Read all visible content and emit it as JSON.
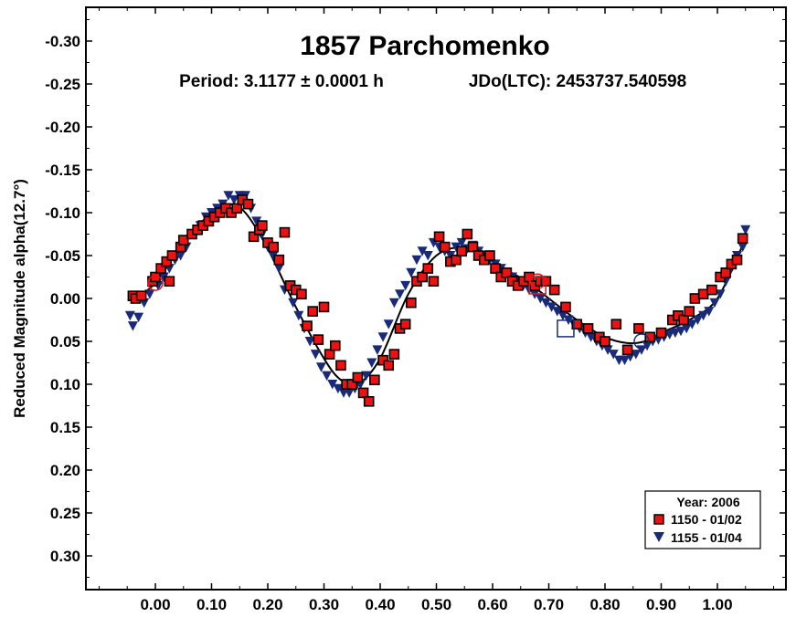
{
  "chart_data": {
    "type": "scatter",
    "title": "1857 Parchomenko",
    "subtitle_period": "Period: 3.1177 ± 0.0001 h",
    "subtitle_epoch": "JDo(LTC): 2453737.540598",
    "xlabel": "",
    "ylabel": "Reduced Magnitude alpha(12.7°)",
    "xlim": [
      -0.12,
      1.13
    ],
    "ylim": [
      0.35,
      -0.33
    ],
    "y_inverted": true,
    "grid": false,
    "x_ticks": [
      0.0,
      0.1,
      0.2,
      0.3,
      0.4,
      0.5,
      0.6,
      0.7,
      0.8,
      0.9,
      1.0
    ],
    "x_tick_labels": [
      "0.00",
      "0.10",
      "0.20",
      "0.30",
      "0.40",
      "0.50",
      "0.60",
      "0.70",
      "0.80",
      "0.90",
      "1.00"
    ],
    "y_ticks": [
      -0.3,
      -0.25,
      -0.2,
      -0.15,
      -0.1,
      -0.05,
      0.0,
      0.05,
      0.1,
      0.15,
      0.2,
      0.25,
      0.3
    ],
    "y_tick_labels": [
      "-0.30",
      "-0.25",
      "-0.20",
      "-0.15",
      "-0.10",
      "-0.05",
      "0.00",
      "0.05",
      "0.10",
      "0.15",
      "0.20",
      "0.25",
      "0.30"
    ],
    "legend": {
      "placement": "bottom-right",
      "title": "Year: 2006",
      "entries": [
        "1150 - 01/02",
        "1155 - 01/04"
      ]
    },
    "colors": {
      "series1": "#ee1111",
      "series2": "#1a2a7a",
      "curve": "#000000"
    },
    "series": [
      {
        "name": "1150 - 01/02",
        "marker": "square",
        "x": [
          -0.04,
          -0.035,
          -0.025,
          -0.005,
          0.0,
          0.01,
          0.02,
          0.025,
          0.03,
          0.045,
          0.05,
          0.065,
          0.075,
          0.085,
          0.095,
          0.105,
          0.115,
          0.125,
          0.135,
          0.145,
          0.155,
          0.165,
          0.175,
          0.185,
          0.19,
          0.2,
          0.21,
          0.22,
          0.23,
          0.24,
          0.25,
          0.26,
          0.27,
          0.28,
          0.29,
          0.3,
          0.31,
          0.32,
          0.33,
          0.34,
          0.35,
          0.36,
          0.37,
          0.38,
          0.39,
          0.405,
          0.415,
          0.425,
          0.435,
          0.445,
          0.455,
          0.465,
          0.475,
          0.485,
          0.495,
          0.505,
          0.515,
          0.525,
          0.535,
          0.545,
          0.555,
          0.565,
          0.575,
          0.585,
          0.595,
          0.605,
          0.615,
          0.625,
          0.635,
          0.645,
          0.655,
          0.665,
          0.675,
          0.685,
          0.695,
          0.71,
          0.73,
          0.75,
          0.77,
          0.79,
          0.8,
          0.82,
          0.84,
          0.86,
          0.88,
          0.9,
          0.92,
          0.93,
          0.94,
          0.95,
          0.96,
          0.975,
          0.99,
          1.005,
          1.015,
          1.025,
          1.035,
          1.045
        ],
        "values": [
          -0.003,
          0.0,
          -0.003,
          -0.02,
          -0.025,
          -0.035,
          -0.043,
          -0.02,
          -0.05,
          -0.06,
          -0.068,
          -0.075,
          -0.08,
          -0.085,
          -0.09,
          -0.095,
          -0.1,
          -0.105,
          -0.1,
          -0.105,
          -0.115,
          -0.11,
          -0.072,
          -0.08,
          -0.085,
          -0.065,
          -0.06,
          -0.045,
          -0.077,
          -0.015,
          -0.01,
          -0.005,
          0.032,
          0.015,
          0.048,
          0.01,
          0.065,
          0.055,
          0.078,
          0.1,
          0.1,
          0.092,
          0.11,
          0.12,
          0.095,
          0.072,
          0.078,
          0.065,
          0.035,
          0.03,
          0.005,
          -0.02,
          -0.025,
          -0.035,
          -0.02,
          -0.072,
          -0.06,
          -0.043,
          -0.045,
          -0.055,
          -0.075,
          -0.06,
          -0.05,
          -0.045,
          -0.05,
          -0.035,
          -0.025,
          -0.03,
          -0.02,
          -0.015,
          -0.02,
          -0.025,
          -0.015,
          -0.02,
          -0.02,
          -0.01,
          0.01,
          0.03,
          0.035,
          0.045,
          0.05,
          0.03,
          0.06,
          0.035,
          0.045,
          0.04,
          0.025,
          0.02,
          0.025,
          0.015,
          0.0,
          -0.005,
          -0.01,
          -0.025,
          -0.03,
          -0.04,
          -0.045,
          -0.07
        ]
      },
      {
        "name": "1155 - 01/04",
        "marker": "triangle-down",
        "x": [
          -0.045,
          -0.04,
          -0.03,
          -0.02,
          -0.01,
          0.005,
          0.015,
          0.025,
          0.035,
          0.045,
          0.055,
          0.065,
          0.08,
          0.09,
          0.1,
          0.11,
          0.12,
          0.13,
          0.14,
          0.15,
          0.16,
          0.17,
          0.18,
          0.19,
          0.2,
          0.21,
          0.22,
          0.23,
          0.245,
          0.255,
          0.265,
          0.275,
          0.285,
          0.295,
          0.305,
          0.315,
          0.325,
          0.335,
          0.345,
          0.355,
          0.365,
          0.375,
          0.385,
          0.395,
          0.405,
          0.415,
          0.425,
          0.435,
          0.445,
          0.455,
          0.465,
          0.475,
          0.485,
          0.495,
          0.505,
          0.515,
          0.525,
          0.535,
          0.545,
          0.555,
          0.565,
          0.575,
          0.585,
          0.595,
          0.605,
          0.615,
          0.625,
          0.635,
          0.645,
          0.655,
          0.665,
          0.675,
          0.685,
          0.695,
          0.705,
          0.715,
          0.725,
          0.735,
          0.745,
          0.755,
          0.765,
          0.775,
          0.785,
          0.795,
          0.805,
          0.815,
          0.825,
          0.835,
          0.845,
          0.855,
          0.865,
          0.875,
          0.885,
          0.895,
          0.905,
          0.915,
          0.925,
          0.935,
          0.945,
          0.955,
          0.965,
          0.975,
          0.985,
          0.995,
          1.005,
          1.015,
          1.025,
          1.035,
          1.045,
          1.05
        ],
        "values": [
          0.02,
          0.032,
          0.022,
          0.005,
          -0.005,
          -0.015,
          -0.025,
          -0.035,
          -0.045,
          -0.05,
          -0.06,
          -0.075,
          -0.085,
          -0.095,
          -0.1,
          -0.105,
          -0.11,
          -0.12,
          -0.115,
          -0.12,
          -0.12,
          -0.105,
          -0.09,
          -0.075,
          -0.06,
          -0.05,
          -0.035,
          -0.01,
          0.005,
          0.02,
          0.035,
          0.05,
          0.065,
          0.08,
          0.09,
          0.1,
          0.105,
          0.11,
          0.11,
          0.105,
          0.1,
          0.09,
          0.075,
          0.06,
          0.045,
          0.03,
          0.005,
          -0.005,
          -0.015,
          -0.03,
          -0.045,
          -0.055,
          -0.05,
          -0.065,
          -0.06,
          -0.055,
          -0.05,
          -0.06,
          -0.065,
          -0.058,
          -0.062,
          -0.055,
          -0.05,
          -0.045,
          -0.04,
          -0.035,
          -0.03,
          -0.025,
          -0.02,
          -0.015,
          -0.01,
          -0.005,
          0.0,
          0.005,
          0.01,
          0.015,
          0.02,
          0.025,
          0.03,
          0.035,
          0.04,
          0.045,
          0.05,
          0.055,
          0.06,
          0.065,
          0.072,
          0.072,
          0.068,
          0.065,
          0.06,
          0.055,
          0.05,
          0.048,
          0.045,
          0.042,
          0.04,
          0.038,
          0.035,
          0.03,
          0.025,
          0.02,
          0.015,
          0.005,
          -0.005,
          -0.02,
          -0.035,
          -0.05,
          -0.06,
          -0.08
        ]
      }
    ],
    "fit_curve": {
      "x": [
        -0.04,
        0.0,
        0.05,
        0.1,
        0.13,
        0.16,
        0.2,
        0.25,
        0.3,
        0.33,
        0.36,
        0.4,
        0.45,
        0.5,
        0.55,
        0.58,
        0.62,
        0.66,
        0.7,
        0.75,
        0.8,
        0.84,
        0.87,
        0.9,
        0.95,
        1.0,
        1.05
      ],
      "values": [
        0.002,
        -0.018,
        -0.065,
        -0.1,
        -0.11,
        -0.1,
        -0.058,
        0.01,
        0.07,
        0.095,
        0.1,
        0.07,
        -0.005,
        -0.05,
        -0.06,
        -0.052,
        -0.035,
        -0.02,
        0.0,
        0.025,
        0.045,
        0.052,
        0.05,
        0.04,
        0.025,
        0.0,
        -0.07
      ]
    },
    "annotations": [
      {
        "shape": "circle",
        "x": 0.0,
        "value": -0.018,
        "color": "#ee1111"
      },
      {
        "shape": "circle",
        "x": 0.68,
        "value": -0.02,
        "color": "#ee1111"
      },
      {
        "shape": "square",
        "x": 0.68,
        "value": -0.015,
        "color": "#ee1111"
      },
      {
        "shape": "square",
        "x": 0.73,
        "value": 0.035,
        "color": "#1a2a7a"
      },
      {
        "shape": "circle",
        "x": 0.865,
        "value": 0.05,
        "color": "#1a2a7a"
      }
    ]
  }
}
